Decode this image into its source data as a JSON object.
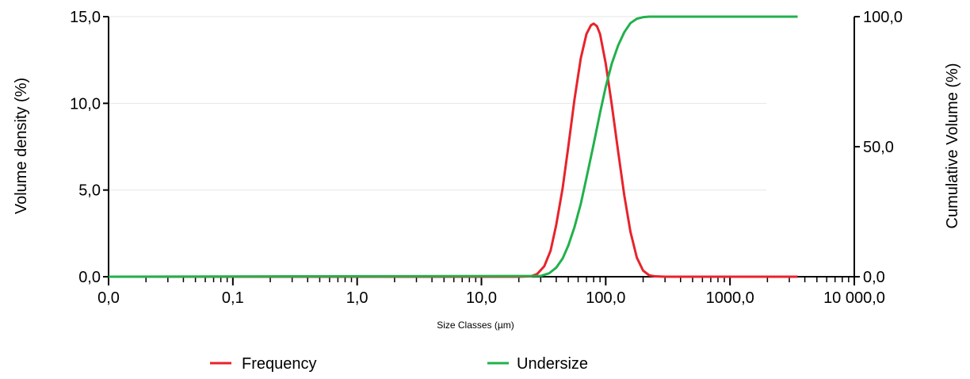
{
  "chart_data": {
    "type": "line",
    "title": "",
    "xlabel": "Size Classes (µm)",
    "ylabel": "Volume density (%)",
    "y2label": "Cumulative Volume (%)",
    "x_scale": "log",
    "xlim": [
      0.01,
      10000
    ],
    "ylim": [
      0,
      15
    ],
    "y2lim": [
      0,
      100
    ],
    "grid": "horizontal",
    "legend_position": "bottom",
    "x_tick_values": [
      0.01,
      0.1,
      1,
      10,
      100,
      1000,
      10000
    ],
    "x_tick_labels": [
      "0,0",
      "0,1",
      "1,0",
      "10,0",
      "100,0",
      "1000,0",
      "10 000,0"
    ],
    "y_tick_values": [
      0,
      5,
      10,
      15
    ],
    "y_tick_labels": [
      "0,0",
      "5,0",
      "10,0",
      "15,0"
    ],
    "y2_tick_values": [
      0,
      50,
      100
    ],
    "y2_tick_labels": [
      "0,0",
      "50,0",
      "100,0"
    ],
    "colors": {
      "frequency": "#e8232b",
      "undersize": "#22b14c",
      "axis": "#000000",
      "grid": "#e6e6e6"
    },
    "series": [
      {
        "name": "Frequency",
        "axis": "left",
        "x": [
          0.01,
          20,
          25,
          28,
          32,
          36,
          40,
          45,
          50,
          56,
          63,
          70,
          76,
          80,
          85,
          90,
          100,
          112,
          126,
          141,
          158,
          178,
          200,
          224,
          250,
          300,
          400,
          3500
        ],
        "y": [
          0,
          0,
          0.02,
          0.15,
          0.6,
          1.5,
          3.0,
          5.1,
          7.5,
          10.2,
          12.6,
          14.0,
          14.5,
          14.6,
          14.45,
          14.0,
          12.3,
          9.9,
          7.2,
          4.7,
          2.6,
          1.1,
          0.35,
          0.08,
          0.02,
          0,
          0,
          0
        ]
      },
      {
        "name": "Undersize",
        "axis": "right",
        "x": [
          0.01,
          30,
          35,
          40,
          45,
          50,
          56,
          63,
          70,
          80,
          90,
          100,
          112,
          126,
          141,
          158,
          178,
          200,
          224,
          250,
          3500
        ],
        "y": [
          0,
          0.3,
          1.3,
          3.5,
          7,
          12,
          19,
          28,
          38,
          51,
          63,
          73,
          82,
          89,
          94,
          97.5,
          99.2,
          99.8,
          100,
          100,
          100
        ]
      }
    ]
  }
}
